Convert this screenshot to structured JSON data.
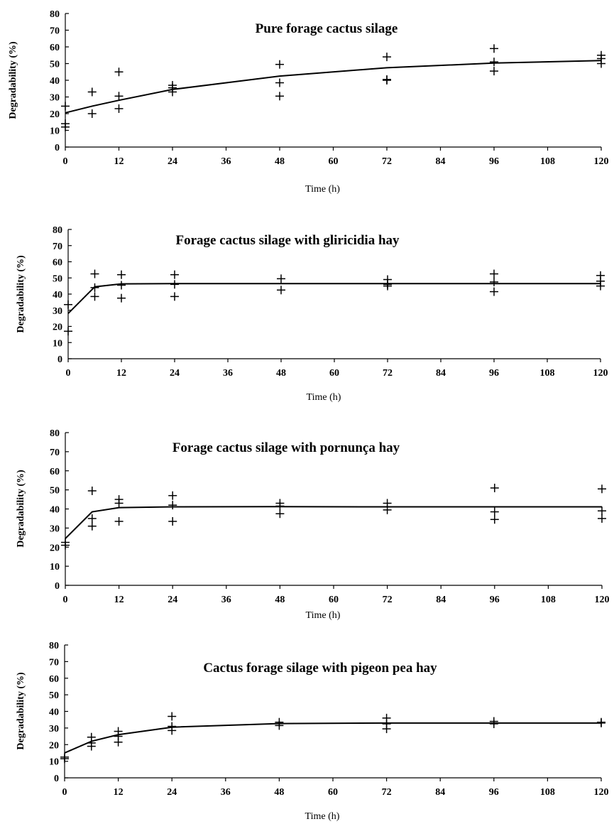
{
  "chart_data": [
    {
      "type": "scatter",
      "title": "Pure forage cactus silage",
      "xlabel": "Time (h)",
      "ylabel": "Degradability (%)",
      "xlim": [
        0,
        120
      ],
      "ylim": [
        0,
        80
      ],
      "xticks": [
        0,
        12,
        24,
        36,
        48,
        60,
        72,
        84,
        96,
        108,
        120
      ],
      "yticks": [
        0,
        10,
        20,
        30,
        40,
        50,
        60,
        70,
        80
      ],
      "grid": false,
      "series": [
        {
          "type": "scatter",
          "marker": "plus",
          "x": [
            0,
            0,
            0,
            6,
            6,
            12,
            12,
            12,
            24,
            24,
            24,
            48,
            48,
            48,
            72,
            72,
            72,
            96,
            96,
            96,
            120,
            120,
            120
          ],
          "y": [
            24.5,
            14,
            12,
            33,
            20,
            45,
            30.5,
            23,
            37,
            35.5,
            33,
            49.5,
            38.5,
            30.5,
            54,
            40.5,
            40,
            59,
            51,
            45.5,
            55,
            53,
            50
          ]
        },
        {
          "type": "line",
          "x": [
            0,
            6,
            12,
            24,
            48,
            72,
            96,
            120
          ],
          "y": [
            20.5,
            24.5,
            28,
            34.5,
            42.5,
            47.5,
            50.3,
            51.8
          ]
        }
      ]
    },
    {
      "type": "scatter",
      "title": "Forage cactus silage with gliricidia hay",
      "xlabel": "Time (h)",
      "ylabel": "Degradability (%)",
      "xlim": [
        0,
        120
      ],
      "ylim": [
        0,
        80
      ],
      "xticks": [
        0,
        12,
        24,
        36,
        48,
        60,
        72,
        84,
        96,
        108,
        120
      ],
      "yticks": [
        0,
        10,
        20,
        30,
        40,
        50,
        60,
        70,
        80
      ],
      "grid": false,
      "series": [
        {
          "type": "scatter",
          "marker": "plus",
          "x": [
            0,
            0,
            6,
            6,
            6,
            12,
            12,
            12,
            24,
            24,
            24,
            48,
            48,
            72,
            72,
            72,
            96,
            96,
            96,
            120,
            120,
            120
          ],
          "y": [
            33.5,
            17,
            52.5,
            44,
            38.5,
            52,
            45.5,
            37.5,
            52,
            46,
            38.5,
            49.5,
            42.5,
            49,
            46,
            45,
            52.5,
            47.5,
            41.5,
            51.5,
            48,
            45
          ]
        },
        {
          "type": "line",
          "x": [
            0,
            6,
            12,
            24,
            48,
            72,
            96,
            120
          ],
          "y": [
            28,
            44.5,
            46.3,
            46.5,
            46.5,
            46.5,
            46.5,
            46.5
          ]
        }
      ]
    },
    {
      "type": "scatter",
      "title": "Forage cactus silage with pornunça hay",
      "xlabel": "Time (h)",
      "ylabel": "Degradability (%)",
      "xlim": [
        0,
        120
      ],
      "ylim": [
        0,
        80
      ],
      "xticks": [
        0,
        12,
        24,
        36,
        48,
        60,
        72,
        84,
        96,
        108,
        120
      ],
      "yticks": [
        0,
        10,
        20,
        30,
        40,
        50,
        60,
        70,
        80
      ],
      "grid": false,
      "series": [
        {
          "type": "scatter",
          "marker": "plus",
          "x": [
            0,
            0,
            6,
            6,
            6,
            12,
            12,
            12,
            24,
            24,
            24,
            48,
            48,
            48,
            72,
            72,
            96,
            96,
            96,
            120,
            120,
            120
          ],
          "y": [
            22.5,
            21,
            49.5,
            35,
            31,
            45,
            43,
            33.5,
            47,
            42,
            33.5,
            43,
            41.5,
            37.5,
            43,
            39.5,
            51,
            38.5,
            34.5,
            50.5,
            39,
            35
          ]
        },
        {
          "type": "line",
          "x": [
            0,
            6,
            12,
            24,
            48,
            72,
            96,
            120
          ],
          "y": [
            24.5,
            38.5,
            40.7,
            41.1,
            41.2,
            41.1,
            41.1,
            41.1
          ]
        }
      ]
    },
    {
      "type": "scatter",
      "title": "Cactus forage silage with pigeon pea hay",
      "xlabel": "Time (h)",
      "ylabel": "Degradability (%)",
      "xlim": [
        0,
        120
      ],
      "ylim": [
        0,
        80
      ],
      "xticks": [
        0,
        12,
        24,
        36,
        48,
        60,
        72,
        84,
        96,
        108,
        120
      ],
      "yticks": [
        0,
        10,
        20,
        30,
        40,
        50,
        60,
        70,
        80
      ],
      "grid": false,
      "series": [
        {
          "type": "scatter",
          "marker": "plus",
          "x": [
            0,
            0,
            6,
            6,
            6,
            12,
            12,
            12,
            24,
            24,
            24,
            48,
            48,
            72,
            72,
            72,
            96,
            96,
            120,
            120
          ],
          "y": [
            12.5,
            11.5,
            24.5,
            21,
            19,
            28,
            25,
            21.5,
            37,
            31,
            28.5,
            33.5,
            31.5,
            36,
            32.5,
            29.5,
            34,
            32.5,
            33.5,
            33
          ]
        },
        {
          "type": "line",
          "x": [
            0,
            6,
            12,
            24,
            48,
            72,
            96,
            120
          ],
          "y": [
            15,
            22,
            26,
            30.5,
            32.7,
            33,
            33,
            33
          ]
        }
      ]
    }
  ]
}
